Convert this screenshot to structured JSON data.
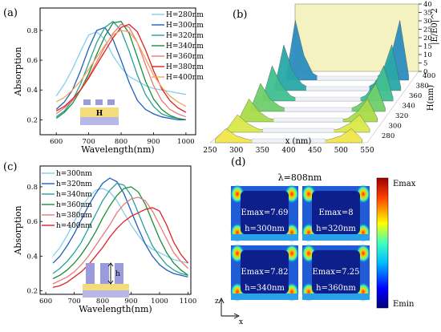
{
  "chart_data": [
    {
      "panel": "(a)",
      "type": "line",
      "xlabel": "Wavelength(nm)",
      "ylabel": "Absorption",
      "xlim": [
        550,
        1030
      ],
      "ylim": [
        0.1,
        0.95
      ],
      "xticks": [
        600,
        700,
        800,
        900,
        1000
      ],
      "yticks": [
        0.2,
        0.4,
        0.6,
        0.8
      ],
      "legend_position": "top-right",
      "inset_label": "H",
      "series": [
        {
          "name": "H=280nm",
          "color": "#87CEEB",
          "x": [
            600,
            625,
            650,
            675,
            700,
            725,
            750,
            775,
            800,
            825,
            850,
            875,
            900,
            925,
            950,
            975,
            1000
          ],
          "y": [
            0.36,
            0.44,
            0.54,
            0.66,
            0.77,
            0.79,
            0.74,
            0.63,
            0.55,
            0.49,
            0.46,
            0.43,
            0.41,
            0.4,
            0.39,
            0.38,
            0.37
          ]
        },
        {
          "name": "H=300nm",
          "color": "#1f5fbf",
          "x": [
            600,
            625,
            650,
            675,
            700,
            725,
            750,
            775,
            800,
            825,
            850,
            875,
            900,
            925,
            950,
            975,
            1000
          ],
          "y": [
            0.27,
            0.32,
            0.4,
            0.53,
            0.68,
            0.8,
            0.82,
            0.74,
            0.6,
            0.45,
            0.33,
            0.27,
            0.24,
            0.22,
            0.21,
            0.2,
            0.2
          ]
        },
        {
          "name": "H=320nm",
          "color": "#2aa198",
          "x": [
            600,
            625,
            650,
            675,
            700,
            725,
            750,
            775,
            800,
            825,
            850,
            875,
            900,
            925,
            950,
            975,
            1000
          ],
          "y": [
            0.22,
            0.26,
            0.33,
            0.44,
            0.58,
            0.72,
            0.82,
            0.86,
            0.8,
            0.66,
            0.5,
            0.37,
            0.29,
            0.24,
            0.22,
            0.21,
            0.2
          ]
        },
        {
          "name": "H=340nm",
          "color": "#1a8f3a",
          "x": [
            600,
            625,
            650,
            675,
            700,
            725,
            750,
            775,
            800,
            825,
            850,
            875,
            900,
            925,
            950,
            975,
            1000
          ],
          "y": [
            0.21,
            0.25,
            0.31,
            0.4,
            0.51,
            0.64,
            0.76,
            0.85,
            0.86,
            0.78,
            0.62,
            0.46,
            0.34,
            0.27,
            0.23,
            0.21,
            0.2
          ]
        },
        {
          "name": "H=360nm",
          "color": "#e87a7a",
          "x": [
            600,
            625,
            650,
            675,
            700,
            725,
            750,
            775,
            800,
            825,
            850,
            875,
            900,
            925,
            950,
            975,
            1000
          ],
          "y": [
            0.24,
            0.28,
            0.33,
            0.4,
            0.49,
            0.59,
            0.69,
            0.78,
            0.84,
            0.82,
            0.72,
            0.57,
            0.43,
            0.33,
            0.27,
            0.24,
            0.22
          ]
        },
        {
          "name": "H=380nm",
          "color": "#e02020",
          "x": [
            600,
            625,
            650,
            675,
            700,
            725,
            750,
            775,
            800,
            825,
            850,
            875,
            900,
            925,
            950,
            975,
            1000
          ],
          "y": [
            0.26,
            0.29,
            0.34,
            0.4,
            0.48,
            0.57,
            0.66,
            0.75,
            0.82,
            0.84,
            0.79,
            0.67,
            0.53,
            0.41,
            0.33,
            0.28,
            0.25
          ]
        },
        {
          "name": "H=400nm",
          "color": "#f4a460",
          "x": [
            600,
            625,
            650,
            675,
            700,
            725,
            750,
            775,
            800,
            825,
            850,
            875,
            900,
            925,
            950,
            975,
            1000
          ],
          "y": [
            0.32,
            0.35,
            0.4,
            0.46,
            0.54,
            0.62,
            0.7,
            0.77,
            0.8,
            0.79,
            0.72,
            0.61,
            0.5,
            0.42,
            0.36,
            0.32,
            0.29
          ]
        }
      ]
    },
    {
      "panel": "(b)",
      "type": "area",
      "xlabel": "x (nm)",
      "ylabel": "H(nm)",
      "zlabel": "|E/E0|^2",
      "xlim": [
        250,
        550
      ],
      "xticks": [
        250,
        300,
        350,
        400,
        450,
        500,
        550
      ],
      "yticks": [
        280,
        300,
        320,
        340,
        360,
        380,
        400
      ],
      "zticks": [
        0,
        5,
        10,
        15,
        20,
        25,
        30,
        35,
        40
      ],
      "zlim": [
        0,
        40
      ],
      "series": [
        {
          "name": "280",
          "color": "#f0e64a",
          "x": [
            260,
            280,
            300,
            320,
            340,
            360,
            380,
            400,
            420,
            440,
            460,
            480,
            500,
            520,
            540
          ],
          "y": [
            2,
            8,
            4,
            2,
            1,
            1,
            1,
            1,
            1,
            1,
            1,
            2,
            4,
            8,
            2
          ]
        },
        {
          "name": "300",
          "color": "#d9e84a",
          "x": [
            260,
            280,
            300,
            320,
            340,
            360,
            380,
            400,
            420,
            440,
            460,
            480,
            500,
            520,
            540
          ],
          "y": [
            2,
            10,
            5,
            2,
            1,
            1,
            1,
            1,
            1,
            1,
            1,
            2,
            5,
            10,
            2
          ]
        },
        {
          "name": "320",
          "color": "#a8db4a",
          "x": [
            260,
            280,
            300,
            320,
            340,
            360,
            380,
            400,
            420,
            440,
            460,
            480,
            500,
            520,
            540
          ],
          "y": [
            2,
            13,
            6,
            2,
            1,
            1,
            1,
            1,
            1,
            1,
            1,
            2,
            6,
            13,
            2
          ]
        },
        {
          "name": "340",
          "color": "#6fcf6a",
          "x": [
            260,
            280,
            300,
            320,
            340,
            360,
            380,
            400,
            420,
            440,
            460,
            480,
            500,
            520,
            540
          ],
          "y": [
            2,
            16,
            7,
            3,
            1,
            1,
            1,
            1,
            1,
            1,
            1,
            3,
            7,
            16,
            2
          ]
        },
        {
          "name": "360",
          "color": "#3fbf8f",
          "x": [
            260,
            280,
            300,
            320,
            340,
            360,
            380,
            400,
            420,
            440,
            460,
            480,
            500,
            520,
            540
          ],
          "y": [
            2,
            20,
            9,
            3,
            1,
            1,
            1,
            1,
            1,
            1,
            1,
            3,
            9,
            20,
            2
          ]
        },
        {
          "name": "380",
          "color": "#2aa8a8",
          "x": [
            260,
            280,
            300,
            320,
            340,
            360,
            380,
            400,
            420,
            440,
            460,
            480,
            500,
            520,
            540
          ],
          "y": [
            2,
            26,
            11,
            4,
            1,
            1,
            1,
            1,
            1,
            1,
            1,
            4,
            11,
            26,
            2
          ]
        },
        {
          "name": "400",
          "color": "#2a8cbf",
          "x": [
            260,
            280,
            300,
            320,
            340,
            360,
            380,
            400,
            420,
            440,
            460,
            480,
            500,
            520,
            540
          ],
          "y": [
            3,
            34,
            14,
            4,
            1,
            1,
            1,
            1,
            1,
            1,
            1,
            4,
            14,
            34,
            3
          ]
        }
      ]
    },
    {
      "panel": "(c)",
      "type": "line",
      "xlabel": "Wavelength(nm)",
      "ylabel": "Absorption",
      "xlim": [
        580,
        1110
      ],
      "ylim": [
        0.18,
        0.92
      ],
      "xticks": [
        600,
        700,
        800,
        900,
        1000,
        1100
      ],
      "yticks": [
        0.2,
        0.4,
        0.6,
        0.8
      ],
      "legend_position": "top-left",
      "inset_label": "h",
      "series": [
        {
          "name": "h=300nm",
          "color": "#87CEEB",
          "x": [
            625,
            650,
            675,
            700,
            725,
            750,
            775,
            800,
            825,
            850,
            875,
            900,
            925,
            950,
            975,
            1000,
            1025,
            1050,
            1075,
            1100
          ],
          "y": [
            0.4,
            0.45,
            0.52,
            0.6,
            0.68,
            0.74,
            0.78,
            0.79,
            0.77,
            0.72,
            0.65,
            0.58,
            0.52,
            0.47,
            0.44,
            0.42,
            0.4,
            0.38,
            0.37,
            0.36
          ]
        },
        {
          "name": "h=320nm",
          "color": "#1f5fbf",
          "x": [
            625,
            650,
            675,
            700,
            725,
            750,
            775,
            800,
            825,
            850,
            875,
            900,
            925,
            950,
            975,
            1000,
            1025,
            1050,
            1075,
            1100
          ],
          "y": [
            0.36,
            0.4,
            0.46,
            0.53,
            0.61,
            0.69,
            0.76,
            0.82,
            0.85,
            0.83,
            0.76,
            0.66,
            0.56,
            0.47,
            0.4,
            0.35,
            0.32,
            0.3,
            0.29,
            0.28
          ]
        },
        {
          "name": "h=340nm",
          "color": "#2aa198",
          "x": [
            625,
            650,
            675,
            700,
            725,
            750,
            775,
            800,
            825,
            850,
            875,
            900,
            925,
            950,
            975,
            1000,
            1025,
            1050,
            1075,
            1100
          ],
          "y": [
            0.3,
            0.33,
            0.37,
            0.42,
            0.48,
            0.56,
            0.64,
            0.72,
            0.78,
            0.82,
            0.81,
            0.75,
            0.65,
            0.55,
            0.46,
            0.4,
            0.35,
            0.32,
            0.3,
            0.29
          ]
        },
        {
          "name": "h=360nm",
          "color": "#1a8f3a",
          "x": [
            625,
            650,
            675,
            700,
            725,
            750,
            775,
            800,
            825,
            850,
            875,
            900,
            925,
            950,
            975,
            1000,
            1025,
            1050,
            1075,
            1100
          ],
          "y": [
            0.27,
            0.29,
            0.32,
            0.36,
            0.41,
            0.47,
            0.54,
            0.62,
            0.69,
            0.75,
            0.79,
            0.8,
            0.77,
            0.7,
            0.6,
            0.5,
            0.42,
            0.36,
            0.32,
            0.29
          ]
        },
        {
          "name": "h=380nm",
          "color": "#e87a7a",
          "x": [
            625,
            650,
            675,
            700,
            725,
            750,
            775,
            800,
            825,
            850,
            875,
            900,
            925,
            950,
            975,
            1000,
            1025,
            1050,
            1075,
            1100
          ],
          "y": [
            0.24,
            0.26,
            0.28,
            0.31,
            0.35,
            0.4,
            0.46,
            0.52,
            0.58,
            0.65,
            0.7,
            0.73,
            0.74,
            0.72,
            0.66,
            0.58,
            0.5,
            0.42,
            0.37,
            0.33
          ]
        },
        {
          "name": "h=400nm",
          "color": "#e02020",
          "x": [
            625,
            650,
            675,
            700,
            725,
            750,
            775,
            800,
            825,
            850,
            875,
            900,
            925,
            950,
            975,
            1000,
            1025,
            1050,
            1075,
            1100
          ],
          "y": [
            0.22,
            0.23,
            0.25,
            0.28,
            0.31,
            0.35,
            0.4,
            0.45,
            0.51,
            0.56,
            0.6,
            0.63,
            0.65,
            0.67,
            0.68,
            0.66,
            0.58,
            0.48,
            0.41,
            0.36
          ]
        }
      ]
    },
    {
      "panel": "(d)",
      "type": "heatmap",
      "title": "λ=808nm",
      "colorbar_max": "Emax",
      "colorbar_min": "Emin",
      "axis_z": "z",
      "axis_x": "x",
      "maps": [
        {
          "emax_label": "Emax=7.69",
          "h_label": "h=300nm"
        },
        {
          "emax_label": "Emax=8",
          "h_label": "h=320nm"
        },
        {
          "emax_label": "Emax=7.82",
          "h_label": "h=340nm"
        },
        {
          "emax_label": "Emax=7.25",
          "h_label": "h=360nm"
        }
      ]
    }
  ]
}
